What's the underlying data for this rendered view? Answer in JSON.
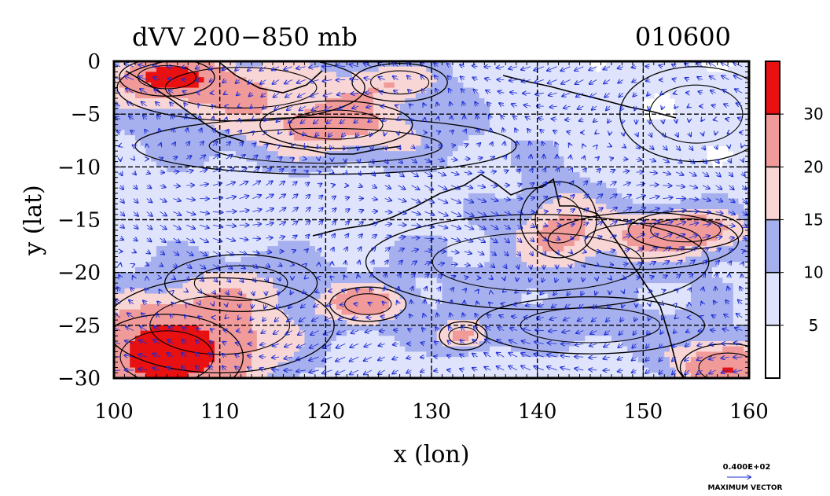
{
  "chart_data": {
    "type": "heatmap",
    "title": "dVV 200−850 mb",
    "date_label": "010600",
    "xlabel": "x (lon)",
    "ylabel": "y (lat)",
    "xlim": [
      100,
      160
    ],
    "ylim": [
      -30,
      0
    ],
    "x_ticks": [
      100,
      110,
      120,
      130,
      140,
      150,
      160
    ],
    "x_tick_labels": [
      "100",
      "110",
      "120",
      "130",
      "140",
      "150",
      "160"
    ],
    "y_ticks": [
      0,
      -5,
      -10,
      -15,
      -20,
      -25,
      -30
    ],
    "y_tick_labels": [
      "0",
      "−5",
      "−10",
      "−15",
      "−20",
      "−25",
      "−30"
    ],
    "grid": true,
    "colorbar": {
      "levels": [
        0,
        5,
        10,
        15,
        20,
        30,
        40
      ],
      "labels": [
        "5",
        "10",
        "15",
        "20",
        "30"
      ],
      "colors": [
        "#ffffff",
        "#dfe3fb",
        "#a7b0ee",
        "#f9d6d6",
        "#f19a9a",
        "#e81010"
      ]
    },
    "blobs": [
      {
        "lon": 112,
        "lat": -2.5,
        "rx": 13,
        "ry": 3.5,
        "value": 19
      },
      {
        "lon": 105,
        "lat": -1.5,
        "rx": 5,
        "ry": 2,
        "value": 26
      },
      {
        "lon": 121,
        "lat": -6,
        "rx": 8,
        "ry": 2.5,
        "value": 17
      },
      {
        "lon": 127,
        "lat": -2,
        "rx": 5,
        "ry": 2,
        "value": 16
      },
      {
        "lon": 120,
        "lat": -8,
        "rx": 20,
        "ry": 3,
        "value": 12
      },
      {
        "lon": 142,
        "lat": -15,
        "rx": 4,
        "ry": 4,
        "value": 17
      },
      {
        "lon": 154,
        "lat": -16,
        "rx": 6,
        "ry": 2,
        "value": 22
      },
      {
        "lon": 124,
        "lat": -23,
        "rx": 4,
        "ry": 1.8,
        "value": 22
      },
      {
        "lon": 133,
        "lat": -26,
        "rx": 2.5,
        "ry": 1.5,
        "value": 21
      },
      {
        "lon": 105,
        "lat": -28,
        "rx": 8,
        "ry": 4.5,
        "value": 33
      },
      {
        "lon": 158,
        "lat": -29,
        "rx": 5,
        "ry": 2.5,
        "value": 30
      },
      {
        "lon": 110,
        "lat": -25,
        "rx": 12,
        "ry": 5,
        "value": 14
      },
      {
        "lon": 145,
        "lat": -25,
        "rx": 12,
        "ry": 3,
        "value": 12
      },
      {
        "lon": 140,
        "lat": -19,
        "rx": 18,
        "ry": 5,
        "value": 11
      },
      {
        "lon": 112,
        "lat": -21,
        "rx": 8,
        "ry": 3,
        "value": 12
      },
      {
        "lon": 150,
        "lat": -17,
        "rx": 10,
        "ry": 3,
        "value": 12
      },
      {
        "lon": 155,
        "lat": -5,
        "rx": 8,
        "ry": 5,
        "value": 6
      }
    ],
    "max_vector_value": "0.400E+02",
    "max_vector_caption": "MAXIMUM VECTOR"
  }
}
